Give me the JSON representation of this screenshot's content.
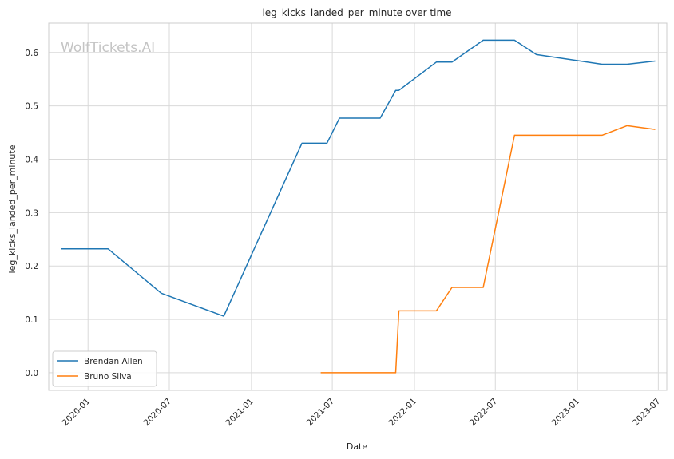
{
  "chart_data": {
    "type": "line",
    "title": "leg_kicks_landed_per_minute over time",
    "xlabel": "Date",
    "ylabel": "leg_kicks_landed_per_minute",
    "watermark": "WolfTickets.AI",
    "x_ticks": [
      "2020-01",
      "2020-07",
      "2021-01",
      "2021-07",
      "2022-01",
      "2022-07",
      "2023-01",
      "2023-07"
    ],
    "y_ticks": [
      "0.0",
      "0.1",
      "0.2",
      "0.3",
      "0.4",
      "0.5",
      "0.6"
    ],
    "xlim": [
      "2019-10-05",
      "2023-07-20"
    ],
    "ylim": [
      -0.033,
      0.655
    ],
    "grid": true,
    "legend_position": "lower-left",
    "series": [
      {
        "name": "Brendan Allen",
        "color": "#1f77b4",
        "points": [
          [
            "2019-11-02",
            0.232
          ],
          [
            "2020-02-15",
            0.232
          ],
          [
            "2020-06-13",
            0.149
          ],
          [
            "2020-10-31",
            0.106
          ],
          [
            "2021-04-24",
            0.43
          ],
          [
            "2021-06-19",
            0.43
          ],
          [
            "2021-07-17",
            0.477
          ],
          [
            "2021-10-16",
            0.477
          ],
          [
            "2021-11-20",
            0.529
          ],
          [
            "2021-11-27",
            0.529
          ],
          [
            "2022-02-19",
            0.582
          ],
          [
            "2022-03-26",
            0.582
          ],
          [
            "2022-06-04",
            0.623
          ],
          [
            "2022-08-13",
            0.623
          ],
          [
            "2022-10-01",
            0.596
          ],
          [
            "2023-02-25",
            0.578
          ],
          [
            "2023-04-22",
            0.578
          ],
          [
            "2023-06-24",
            0.584
          ]
        ]
      },
      {
        "name": "Bruno Silva",
        "color": "#ff7f0e",
        "points": [
          [
            "2021-06-05",
            0.0
          ],
          [
            "2021-11-20",
            0.0
          ],
          [
            "2021-11-27",
            0.116
          ],
          [
            "2022-02-19",
            0.116
          ],
          [
            "2022-03-26",
            0.16
          ],
          [
            "2022-06-04",
            0.16
          ],
          [
            "2022-08-13",
            0.445
          ],
          [
            "2023-02-25",
            0.445
          ],
          [
            "2023-04-22",
            0.463
          ],
          [
            "2023-06-24",
            0.456
          ]
        ]
      }
    ]
  }
}
